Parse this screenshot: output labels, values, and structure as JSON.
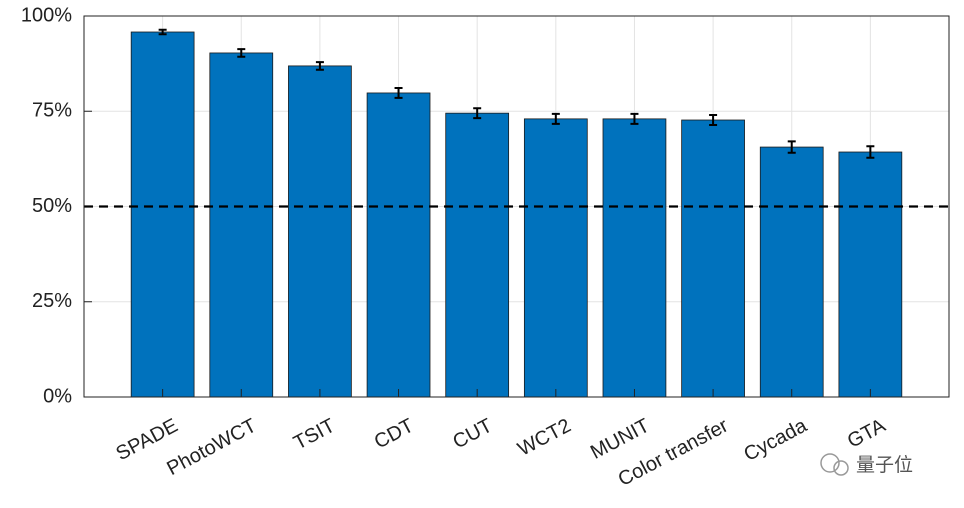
{
  "chart_data": {
    "type": "bar",
    "categories": [
      "SPADE",
      "PhotoWCT",
      "TSIT",
      "CDT",
      "CUT",
      "WCT2",
      "MUNIT",
      "Color transfer",
      "Cycada",
      "GTA"
    ],
    "values": [
      95.8,
      90.3,
      86.9,
      79.8,
      74.5,
      73.0,
      73.0,
      72.7,
      65.6,
      64.3
    ],
    "errors": [
      0.6,
      1.0,
      1.0,
      1.3,
      1.3,
      1.3,
      1.3,
      1.3,
      1.5,
      1.5
    ],
    "color": "#0072bd",
    "ylim": [
      0,
      100
    ],
    "yticks": [
      {
        "value": 0,
        "label": "0%"
      },
      {
        "value": 25,
        "label": "25%"
      },
      {
        "value": 50,
        "label": "50%"
      },
      {
        "value": 75,
        "label": "75%"
      },
      {
        "value": 100,
        "label": "100%"
      }
    ],
    "reference_line": 50,
    "grid": true
  },
  "watermark": "量子位"
}
